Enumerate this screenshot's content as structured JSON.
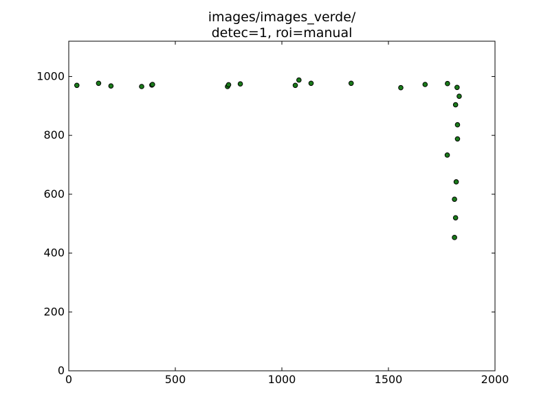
{
  "chart_data": {
    "type": "scatter",
    "title_lines": [
      "images/images_verde/",
      "detec=1, roi=manual"
    ],
    "xlabel": "",
    "ylabel": "",
    "xlim": [
      0,
      2000
    ],
    "ylim": [
      0,
      1120
    ],
    "x_ticks": [
      0,
      500,
      1000,
      1500,
      2000
    ],
    "y_ticks": [
      0,
      200,
      400,
      600,
      800,
      1000
    ],
    "grid": false,
    "marker_color": "#1a7a1a",
    "marker_edge_color": "#000000",
    "points": [
      {
        "x": 38,
        "y": 970
      },
      {
        "x": 140,
        "y": 977
      },
      {
        "x": 198,
        "y": 968
      },
      {
        "x": 342,
        "y": 966
      },
      {
        "x": 390,
        "y": 971
      },
      {
        "x": 393,
        "y": 973
      },
      {
        "x": 745,
        "y": 966
      },
      {
        "x": 750,
        "y": 972
      },
      {
        "x": 805,
        "y": 975
      },
      {
        "x": 1063,
        "y": 970
      },
      {
        "x": 1080,
        "y": 988
      },
      {
        "x": 1137,
        "y": 977
      },
      {
        "x": 1325,
        "y": 977
      },
      {
        "x": 1558,
        "y": 962
      },
      {
        "x": 1672,
        "y": 973
      },
      {
        "x": 1777,
        "y": 976
      },
      {
        "x": 1822,
        "y": 963
      },
      {
        "x": 1832,
        "y": 933
      },
      {
        "x": 1815,
        "y": 904
      },
      {
        "x": 1824,
        "y": 836
      },
      {
        "x": 1824,
        "y": 788
      },
      {
        "x": 1776,
        "y": 733
      },
      {
        "x": 1818,
        "y": 642
      },
      {
        "x": 1810,
        "y": 583
      },
      {
        "x": 1815,
        "y": 520
      },
      {
        "x": 1810,
        "y": 453
      }
    ]
  }
}
